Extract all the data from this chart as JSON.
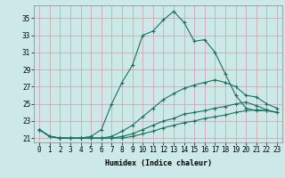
{
  "xlabel": "Humidex (Indice chaleur)",
  "background_color": "#cce8e8",
  "grid_color": "#bbdada",
  "line_color": "#1a7060",
  "xlim": [
    -0.5,
    23.5
  ],
  "ylim": [
    20.5,
    36.5
  ],
  "yticks": [
    21,
    23,
    25,
    27,
    29,
    31,
    33,
    35
  ],
  "xticks": [
    0,
    1,
    2,
    3,
    4,
    5,
    6,
    7,
    8,
    9,
    10,
    11,
    12,
    13,
    14,
    15,
    16,
    17,
    18,
    19,
    20,
    21,
    22,
    23
  ],
  "series": [
    {
      "x": [
        0,
        1,
        2,
        3,
        4,
        5,
        6,
        7,
        8,
        9,
        10,
        11,
        12,
        13,
        14,
        15,
        16,
        17,
        18,
        19,
        20,
        21,
        22,
        23
      ],
      "y": [
        22.0,
        21.2,
        21.0,
        21.0,
        21.0,
        21.2,
        22.0,
        25.0,
        27.5,
        29.5,
        33.0,
        33.5,
        34.8,
        35.8,
        34.5,
        32.3,
        32.5,
        31.0,
        28.5,
        26.0,
        24.5,
        24.2,
        24.2,
        null
      ]
    },
    {
      "x": [
        0,
        1,
        2,
        3,
        4,
        5,
        6,
        7,
        8,
        9,
        10,
        11,
        12,
        13,
        14,
        15,
        16,
        17,
        18,
        19,
        20,
        21,
        22,
        23
      ],
      "y": [
        22.0,
        21.2,
        21.0,
        21.0,
        21.0,
        21.0,
        21.0,
        21.2,
        21.8,
        22.5,
        23.5,
        24.5,
        25.5,
        26.2,
        26.8,
        27.2,
        27.5,
        27.8,
        27.5,
        27.0,
        26.0,
        25.8,
        25.0,
        24.5
      ]
    },
    {
      "x": [
        0,
        1,
        2,
        3,
        4,
        5,
        6,
        7,
        8,
        9,
        10,
        11,
        12,
        13,
        14,
        15,
        16,
        17,
        18,
        19,
        20,
        21,
        22,
        23
      ],
      "y": [
        22.0,
        21.2,
        21.0,
        21.0,
        21.0,
        21.0,
        21.0,
        21.0,
        21.2,
        21.5,
        22.0,
        22.5,
        23.0,
        23.3,
        23.8,
        24.0,
        24.2,
        24.5,
        24.7,
        25.0,
        25.2,
        24.8,
        24.3,
        24.0
      ]
    },
    {
      "x": [
        0,
        1,
        2,
        3,
        4,
        5,
        6,
        7,
        8,
        9,
        10,
        11,
        12,
        13,
        14,
        15,
        16,
        17,
        18,
        19,
        20,
        21,
        22,
        23
      ],
      "y": [
        22.0,
        21.2,
        21.0,
        21.0,
        21.0,
        21.0,
        21.0,
        21.0,
        21.0,
        21.2,
        21.5,
        21.8,
        22.2,
        22.5,
        22.8,
        23.0,
        23.3,
        23.5,
        23.7,
        24.0,
        24.2,
        24.3,
        24.2,
        24.0
      ]
    }
  ]
}
